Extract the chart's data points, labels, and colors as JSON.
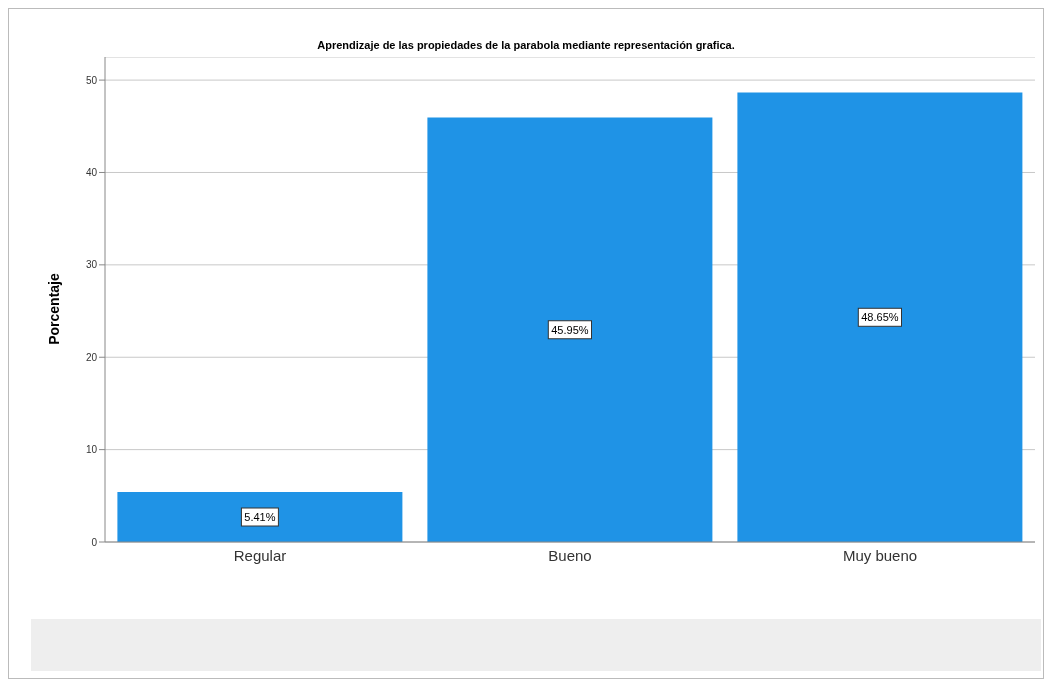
{
  "chart_data": {
    "type": "bar",
    "title": "Aprendizaje de las propiedades de la parabola mediante representación grafica.",
    "ylabel": "Porcentaje",
    "categories": [
      "Regular",
      "Bueno",
      "Muy bueno"
    ],
    "values": [
      5.41,
      45.95,
      48.65
    ],
    "color": "#1f93e6",
    "value_labels": [
      "5.41%",
      "45.95%",
      "48.65%"
    ],
    "ylim": [
      0,
      52.5
    ],
    "yticks": [
      0,
      10,
      20,
      30,
      40,
      50
    ],
    "grid": "y"
  }
}
